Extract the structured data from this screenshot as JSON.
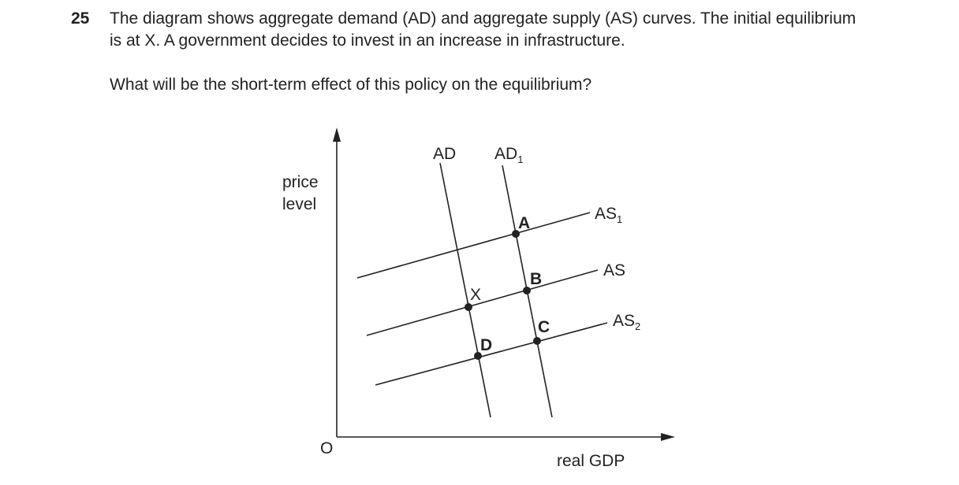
{
  "question": {
    "number": "25",
    "lines": [
      "The diagram shows aggregate demand (AD) and aggregate supply (AS) curves. The initial equilibrium",
      "is at X. A government decides to invest in an increase in infrastructure."
    ],
    "prompt": "What will be the short-term effect of this policy on the equilibrium?"
  },
  "diagram": {
    "y_axis_label": [
      "price",
      "level"
    ],
    "x_axis_label": "real GDP",
    "origin": "O",
    "curves": {
      "ad": {
        "text": "AD"
      },
      "ad1": {
        "text": "AD",
        "sub": "1"
      },
      "as1": {
        "text": "AS",
        "sub": "1"
      },
      "as": {
        "text": "AS"
      },
      "as2": {
        "text": "AS",
        "sub": "2"
      }
    },
    "points": {
      "a": "A",
      "b": "B",
      "c": "C",
      "d": "D",
      "x": "X"
    }
  }
}
